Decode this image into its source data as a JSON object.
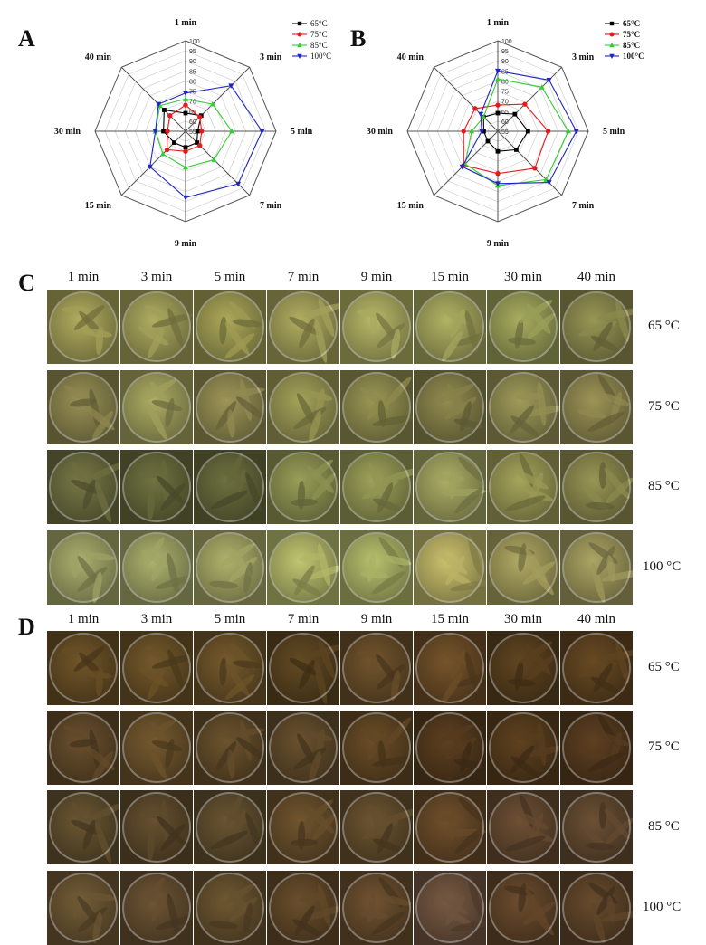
{
  "panels": {
    "a": "A",
    "b": "B",
    "c": "C",
    "d": "D"
  },
  "chart_data": [
    {
      "type": "radar",
      "panel": "A",
      "axes": [
        "1 min",
        "3 min",
        "5 min",
        "7 min",
        "9 min",
        "15 min",
        "30 min",
        "40 min"
      ],
      "radial_ticks": [
        "55",
        "60",
        "65",
        "70",
        "75",
        "80",
        "85",
        "90",
        "95",
        "100"
      ],
      "rlim": [
        55,
        100
      ],
      "legend_position": "top-right",
      "series": [
        {
          "name": "65°C",
          "color": "#000000",
          "marker": "square",
          "values": [
            64,
            66,
            61,
            63,
            63,
            63,
            66,
            70
          ]
        },
        {
          "name": "75°C",
          "color": "#e41a1c",
          "marker": "circle",
          "values": [
            68,
            65,
            63,
            65,
            65,
            68,
            64,
            66
          ]
        },
        {
          "name": "85°C",
          "color": "#33cc33",
          "marker": "triangle-up",
          "values": [
            71,
            74,
            78,
            75,
            73,
            71,
            70,
            73
          ]
        },
        {
          "name": "100°C",
          "color": "#1f24c4",
          "marker": "triangle-down",
          "values": [
            74,
            87,
            93,
            92,
            88,
            80,
            70,
            74
          ]
        }
      ]
    },
    {
      "type": "radar",
      "panel": "B",
      "axes": [
        "1 min",
        "3 min",
        "5 min",
        "7 min",
        "9 min",
        "15 min",
        "30 min",
        "40 min"
      ],
      "radial_ticks": [
        "55",
        "60",
        "65",
        "70",
        "75",
        "80",
        "85",
        "90",
        "95",
        "100"
      ],
      "rlim": [
        55,
        100
      ],
      "legend_position": "top-right",
      "series": [
        {
          "name": "65°C",
          "color": "#000000",
          "marker": "square",
          "values": [
            64,
            67,
            70,
            68,
            65,
            62,
            62,
            65
          ]
        },
        {
          "name": "75°C",
          "color": "#e41a1c",
          "marker": "circle",
          "values": [
            68,
            74,
            80,
            81,
            76,
            79,
            72,
            71
          ]
        },
        {
          "name": "85°C",
          "color": "#33cc33",
          "marker": "triangle-up",
          "values": [
            81,
            86,
            90,
            89,
            82,
            78,
            68,
            65
          ]
        },
        {
          "name": "100°C",
          "color": "#1f24c4",
          "marker": "triangle-down",
          "values": [
            85,
            91,
            94,
            91,
            81,
            80,
            63,
            67
          ]
        }
      ]
    }
  ],
  "photo_grid": {
    "time_headers": [
      "1 min",
      "3 min",
      "5 min",
      "7 min",
      "9 min",
      "15 min",
      "30 min",
      "40 min"
    ],
    "temperatures": [
      "65 °C",
      "75 °C",
      "85 °C",
      "100 °C"
    ],
    "panel_c_colors": [
      [
        "#8e8a4c",
        "#8c8a4d",
        "#8a8748",
        "#8e8b4e",
        "#959454",
        "#8e8f50",
        "#868a4c",
        "#7a7844"
      ],
      [
        "#7a7444",
        "#8b8a50",
        "#7e7846",
        "#848248",
        "#7c7944",
        "#757040",
        "#807c48",
        "#7d7645"
      ],
      [
        "#5f6038",
        "#5a5c34",
        "#585a33",
        "#7a7e46",
        "#7f8248",
        "#8a8c52",
        "#858449",
        "#7a7744"
      ],
      [
        "#8a8d58",
        "#8b8f58",
        "#8d8f56",
        "#9a9e5a",
        "#949a58",
        "#a39b58",
        "#8e8850",
        "#8a8450"
      ]
    ],
    "panel_d_colors": [
      [
        "#5a4420",
        "#5d4722",
        "#5e4823",
        "#4f3b1c",
        "#5b4424",
        "#5e4322",
        "#4d371a",
        "#533b1c"
      ],
      [
        "#554024",
        "#5e4826",
        "#564224",
        "#544125",
        "#553e1f",
        "#4a331a",
        "#4c3519",
        "#4b331b"
      ],
      [
        "#554528",
        "#524026",
        "#544428",
        "#5a4425",
        "#574427",
        "#5a4023",
        "#58402a",
        "#56402a"
      ],
      [
        "#5d4a2c",
        "#58442a",
        "#594628",
        "#553f23",
        "#5a4227",
        "#604836",
        "#563d24",
        "#533c24"
      ]
    ]
  }
}
